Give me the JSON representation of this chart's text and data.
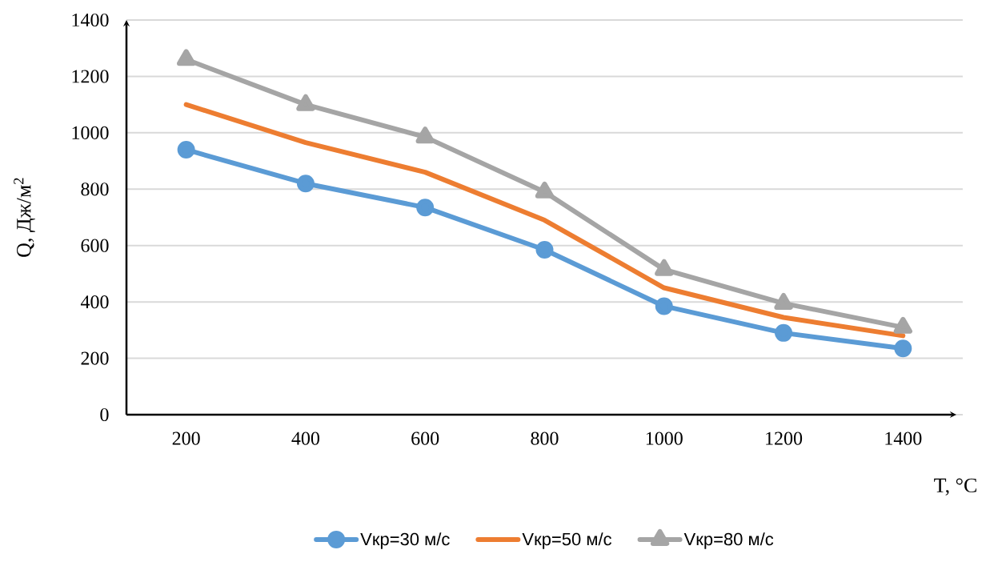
{
  "chart_data": {
    "type": "line",
    "xlabel": "T, °C",
    "ylabel": "Q, Дж/м$^{2}$",
    "categories": [
      "200",
      "400",
      "600",
      "800",
      "1000",
      "1200",
      "1400"
    ],
    "series": [
      {
        "name": "Vкр=30 м/с",
        "color": "#5b9bd5",
        "marker": "circle",
        "values": [
          940,
          820,
          735,
          585,
          385,
          290,
          235
        ]
      },
      {
        "name": "Vкр=50 м/с",
        "color": "#ed7d31",
        "marker": "none",
        "values": [
          1100,
          965,
          860,
          690,
          450,
          345,
          280
        ]
      },
      {
        "name": "Vкр=80 м/с",
        "color": "#a5a5a5",
        "marker": "triangle",
        "values": [
          1260,
          1100,
          985,
          790,
          515,
          395,
          310
        ]
      }
    ],
    "ylim": [
      0,
      1400
    ],
    "yticks": [
      0,
      200,
      400,
      600,
      800,
      1000,
      1200,
      1400
    ],
    "grid": "y",
    "legend": "bottom",
    "line_style": "solid"
  }
}
